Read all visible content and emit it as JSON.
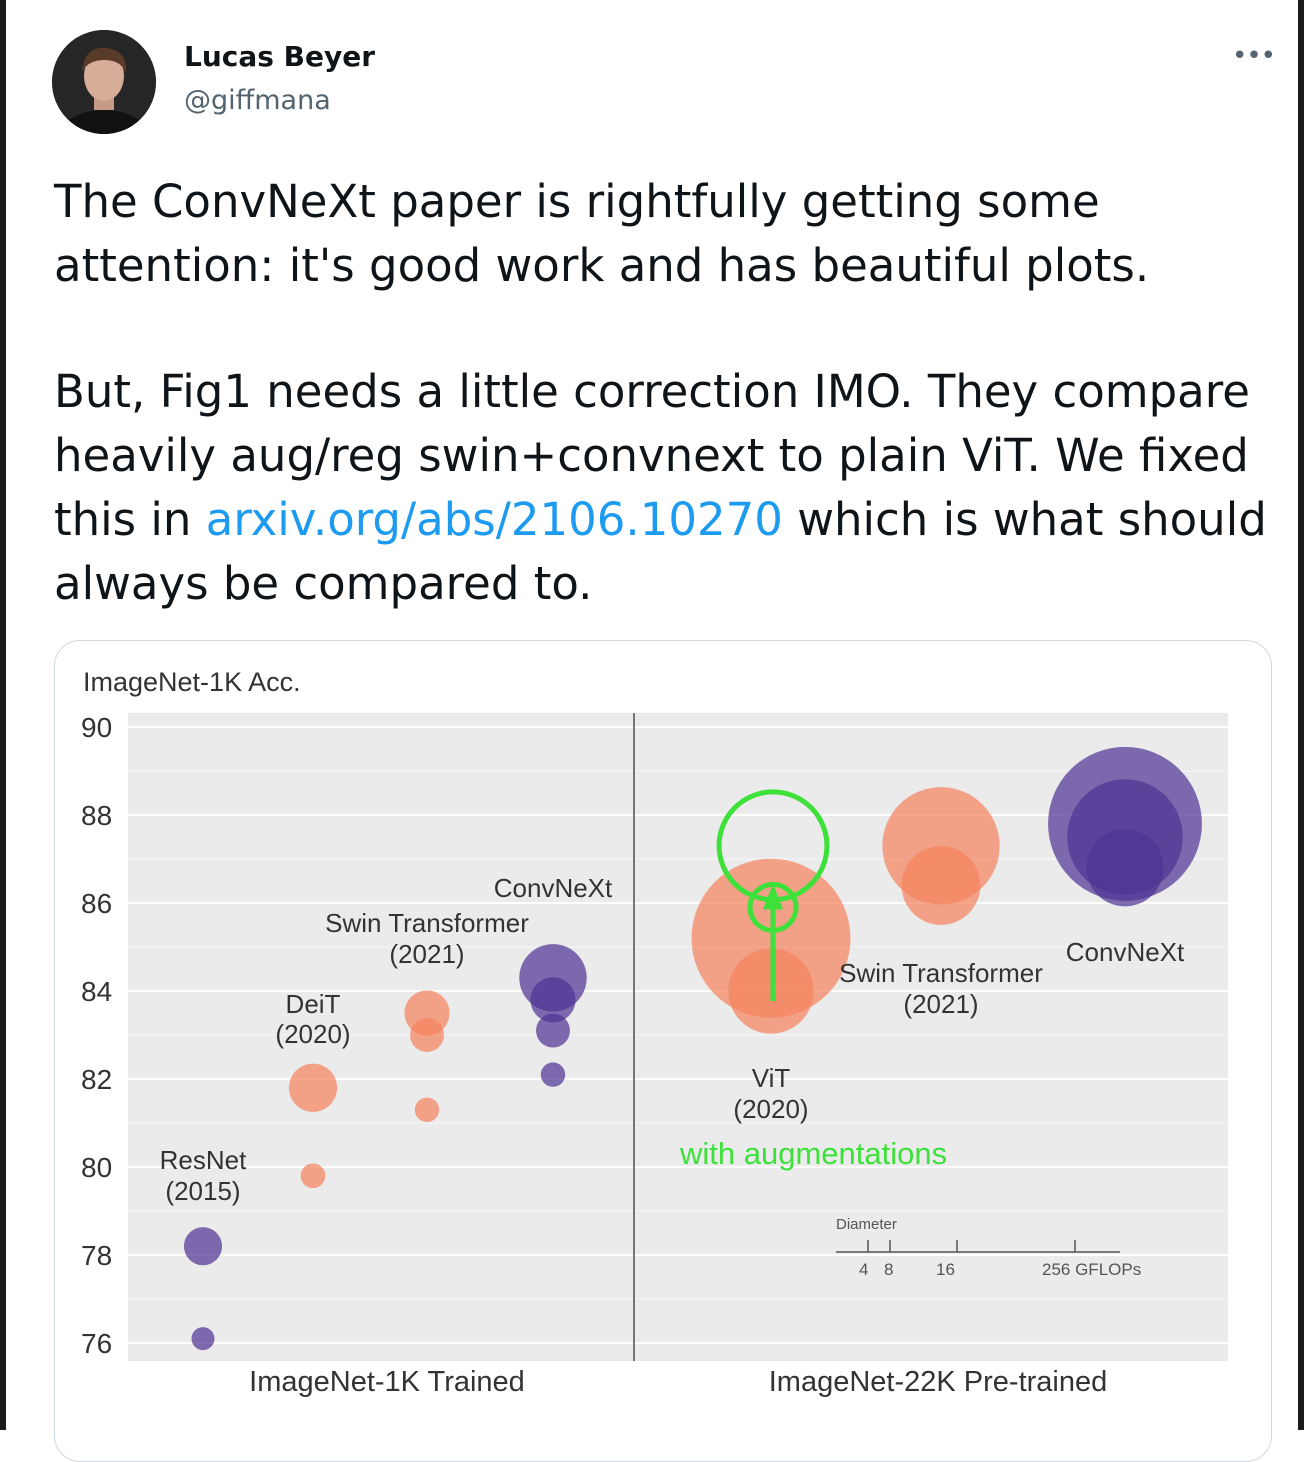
{
  "tweet": {
    "author_name": "Lucas Beyer",
    "author_handle": "@giffmana",
    "more_icon": "more-horizontal-icon",
    "text_p1": "The ConvNeXt paper is rightfully getting some attention: it's good work and has beautiful plots.",
    "text_p2_before": "But, Fig1 needs a little correction IMO. They compare heavily aug/reg swin+convnext to plain ViT. We fixed this in ",
    "link_text": "arxiv.org/abs/2106.10270",
    "text_p2_after": " which is what should always be compared to.",
    "link_color": "#1d9bf0"
  },
  "chart_data": {
    "type": "scatter",
    "ylabel": "ImageNet-1K Acc.",
    "ylim": [
      75.5,
      90.2
    ],
    "yticks": [
      90,
      88,
      86,
      84,
      82,
      80,
      78,
      76
    ],
    "panels": [
      "ImageNet-1K Trained",
      "ImageNet-22K Pre-trained"
    ],
    "colors": {
      "cnn": "#4f3594",
      "transformer": "#f4845f",
      "annotation": "#3ee03a"
    },
    "series": [
      {
        "name": "ResNet",
        "year": "(2015)",
        "panel": 0,
        "color": "cnn",
        "points": [
          {
            "acc": 76.1,
            "gflops": 4
          },
          {
            "acc": 78.2,
            "gflops": 11
          }
        ]
      },
      {
        "name": "DeiT",
        "year": "(2020)",
        "panel": 0,
        "color": "transformer",
        "points": [
          {
            "acc": 79.8,
            "gflops": 4.6
          },
          {
            "acc": 81.8,
            "gflops": 17.6
          }
        ]
      },
      {
        "name": "Swin Transformer",
        "year": "(2021)",
        "panel": 0,
        "color": "transformer",
        "points": [
          {
            "acc": 81.3,
            "gflops": 4.5
          },
          {
            "acc": 83.0,
            "gflops": 8.7
          },
          {
            "acc": 83.5,
            "gflops": 15.4
          }
        ]
      },
      {
        "name": "ConvNeXt",
        "year": "",
        "panel": 0,
        "color": "cnn",
        "points": [
          {
            "acc": 82.1,
            "gflops": 4.5
          },
          {
            "acc": 83.1,
            "gflops": 8.7
          },
          {
            "acc": 83.8,
            "gflops": 15.4
          },
          {
            "acc": 84.3,
            "gflops": 34.4
          }
        ]
      },
      {
        "name": "ViT",
        "year": "(2020)",
        "panel": 1,
        "color": "transformer",
        "points": [
          {
            "acc": 84.0,
            "gflops": 55
          },
          {
            "acc": 85.2,
            "gflops": 191
          }
        ]
      },
      {
        "name": "Swin Transformer",
        "year": "(2021)",
        "panel": 1,
        "color": "transformer",
        "points": [
          {
            "acc": 86.4,
            "gflops": 47
          },
          {
            "acc": 87.3,
            "gflops": 104
          }
        ]
      },
      {
        "name": "ConvNeXt",
        "year": "",
        "panel": 1,
        "color": "cnn",
        "points": [
          {
            "acc": 86.8,
            "gflops": 45
          },
          {
            "acc": 87.5,
            "gflops": 101
          },
          {
            "acc": 87.8,
            "gflops": 179
          }
        ]
      }
    ],
    "size_legend": {
      "title": "Diameter",
      "ticks": [
        "4",
        "8",
        "16",
        "256 GFLOPs"
      ]
    },
    "annotation": {
      "text": "with augmentations",
      "from_acc": 84.0,
      "to_acc": 86.4,
      "circles": [
        {
          "acc": 85.9,
          "gflops": 16
        },
        {
          "acc": 87.3,
          "gflops": 88
        }
      ]
    }
  }
}
